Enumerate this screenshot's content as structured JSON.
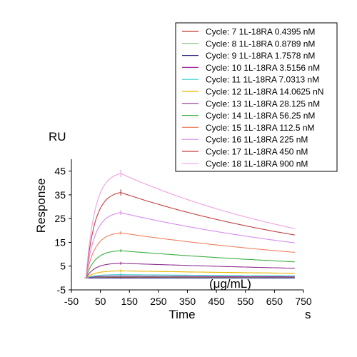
{
  "chart_data": {
    "type": "line",
    "title": "",
    "xlabel": "Time",
    "xunit": "s",
    "ylabel": "Response",
    "yunit": "RU",
    "annotation": "(μg/mL)",
    "xlim": [
      -50,
      750
    ],
    "ylim": [
      -5,
      50
    ],
    "xticks": [
      -50,
      50,
      150,
      250,
      350,
      450,
      550,
      650,
      750
    ],
    "yticks": [
      -5,
      5,
      15,
      25,
      35,
      45
    ],
    "legend_position": "top-right",
    "association_end": 120,
    "x_end": 720,
    "series": [
      {
        "name": "Cycle: 7 1L-18RA 0.4395 nM",
        "color": "#c0392b",
        "peak": 0.3,
        "plateau": 0.2
      },
      {
        "name": "Cycle: 8 1L-18RA 0.8789 nM",
        "color": "#7fb27f",
        "peak": 0.5,
        "plateau": 0.35
      },
      {
        "name": "Cycle: 9 1L-18RA 1.7578 nM",
        "color": "#1a1a80",
        "peak": 0.0,
        "plateau": 0.0
      },
      {
        "name": "Cycle: 10 1L-18RA 3.5156 nM",
        "color": "#9b2d9b",
        "peak": 0.8,
        "plateau": 0.5
      },
      {
        "name": "Cycle: 11 1L-18RA 7.0313 nM",
        "color": "#33cccc",
        "peak": 1.4,
        "plateau": 0.9
      },
      {
        "name": "Cycle: 12 1L-18RA 14.0625 nN",
        "color": "#e6b800",
        "peak": 3.0,
        "plateau": 2.0
      },
      {
        "name": "Cycle: 13 1L-18RA 28.125 nM",
        "color": "#8e2f8e",
        "peak": 6.2,
        "plateau": 4.1
      },
      {
        "name": "Cycle: 14 1L-18RA 56.25 nM",
        "color": "#3cb043",
        "peak": 11.5,
        "plateau": 6.8
      },
      {
        "name": "Cycle: 15 1L-18RA 112.5 nM",
        "color": "#f08060",
        "peak": 19.0,
        "plateau": 10.8
      },
      {
        "name": "Cycle: 16 1L-18RA 225 nM",
        "color": "#d48cf0",
        "peak": 27.5,
        "plateau": 14.8
      },
      {
        "name": "Cycle: 17 1L-18RA 450 nM",
        "color": "#c04040",
        "peak": 36.0,
        "plateau": 18.1
      },
      {
        "name": "Cycle: 18 1L-18RA 900 nM",
        "color": "#f0a0e0",
        "peak": 44.0,
        "plateau": 20.8
      }
    ]
  }
}
